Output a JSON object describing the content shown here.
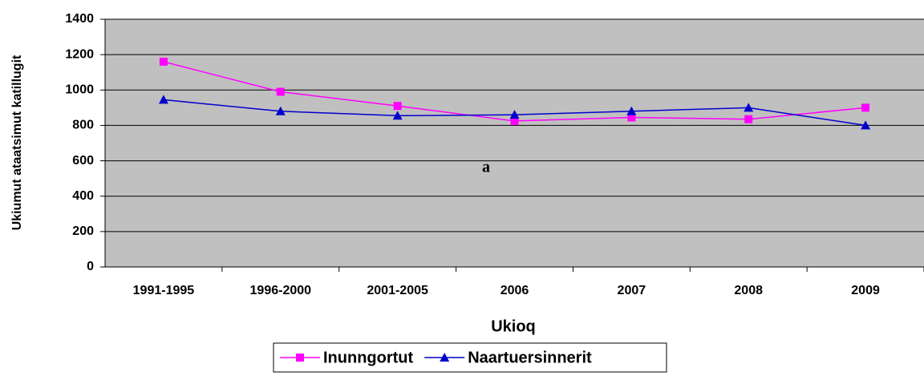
{
  "chart_data": {
    "type": "line",
    "y_label": "Ukiumut ataatsimut katillugit",
    "x_label": "Ukioq",
    "annotation": "a",
    "categories": [
      "1991-1995",
      "1996-2000",
      "2001-2005",
      "2006",
      "2007",
      "2008",
      "2009"
    ],
    "series": [
      {
        "name": "Inunngortut",
        "color": "#ff00ff",
        "marker": "square",
        "values": [
          1160,
          990,
          910,
          825,
          845,
          835,
          900
        ]
      },
      {
        "name": "Naartuersinnerit",
        "color": "#0000cc",
        "marker": "triangle",
        "values": [
          945,
          880,
          855,
          860,
          880,
          900,
          800
        ]
      }
    ],
    "ylim": [
      0,
      1400
    ],
    "yticks": [
      0,
      200,
      400,
      600,
      800,
      1000,
      1200,
      1400
    ],
    "grid": true,
    "legend": "bottom",
    "plot_background": "#c0c0c0"
  }
}
